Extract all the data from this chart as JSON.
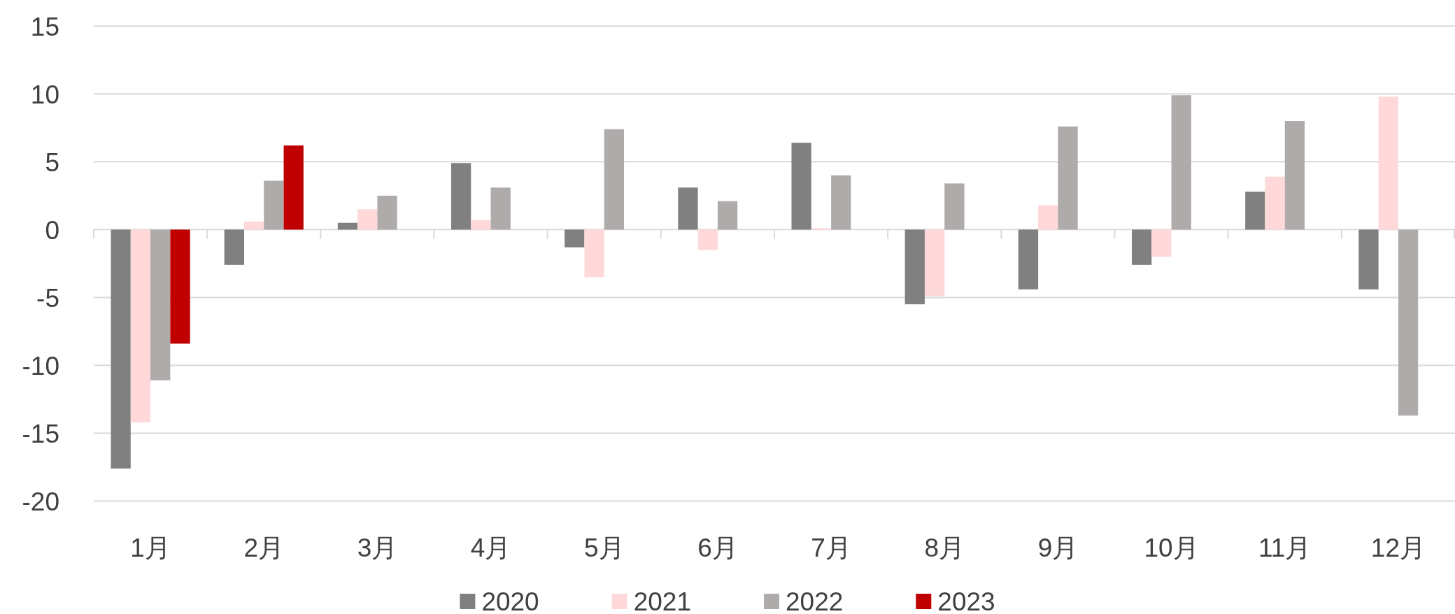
{
  "chart_data": {
    "type": "bar",
    "categories": [
      "1月",
      "2月",
      "3月",
      "4月",
      "5月",
      "6月",
      "7月",
      "8月",
      "9月",
      "10月",
      "11月",
      "12月"
    ],
    "series": [
      {
        "name": "2020",
        "color": "#808080",
        "values": [
          -17.6,
          -2.6,
          0.5,
          4.9,
          -1.3,
          3.1,
          6.4,
          -5.5,
          -4.4,
          -2.6,
          2.8,
          -4.4
        ]
      },
      {
        "name": "2021",
        "color": "#ffd9d9",
        "values": [
          -14.2,
          0.6,
          1.5,
          0.7,
          -3.5,
          -1.5,
          0.1,
          -4.9,
          1.8,
          -2.0,
          3.9,
          9.8
        ]
      },
      {
        "name": "2022",
        "color": "#afabab",
        "values": [
          -11.1,
          3.6,
          2.5,
          3.1,
          7.4,
          2.1,
          4.0,
          3.4,
          7.6,
          9.9,
          8.0,
          -13.7
        ]
      },
      {
        "name": "2023",
        "color": "#c00000",
        "values": [
          -8.4,
          6.2,
          null,
          null,
          null,
          null,
          null,
          null,
          null,
          null,
          null,
          null
        ]
      }
    ],
    "ylim": [
      -20,
      15
    ],
    "yticks": [
      -20,
      -15,
      -10,
      -5,
      0,
      5,
      10,
      15
    ],
    "grid": "y",
    "legend": "bottom"
  }
}
